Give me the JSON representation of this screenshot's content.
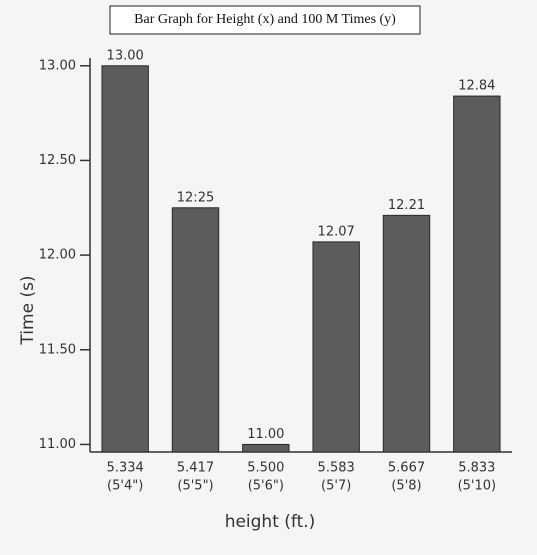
{
  "chart_data": {
    "type": "bar",
    "title": "Bar Graph for Height (x) and 100 M Times (y)",
    "x_label": "height (ft.)",
    "y_label": "Time (s)",
    "categories": [
      "5.334",
      "5.417",
      "5.500",
      "5.583",
      "5.667",
      "5.833"
    ],
    "height_labels": [
      "(5'4\")",
      "(5'5\")",
      "(5'6\")",
      "(5'7)",
      "(5'8)",
      "(5'10)"
    ],
    "values": [
      13.0,
      12.25,
      11.0,
      12.07,
      12.21,
      12.84
    ],
    "value_labels": [
      "13.00",
      "12:25",
      "11.00",
      "12.07",
      "12.21",
      "12.84"
    ],
    "color": "#5c5c5c",
    "ylim": [
      10.96,
      13.02
    ],
    "yticks": [
      {
        "value": 11,
        "label": "11.00"
      },
      {
        "value": 11.5,
        "label": "11.50"
      },
      {
        "value": 12,
        "label": "12.00"
      },
      {
        "value": 12.5,
        "label": "12.50"
      },
      {
        "value": 13,
        "label": "13.00"
      }
    ]
  }
}
